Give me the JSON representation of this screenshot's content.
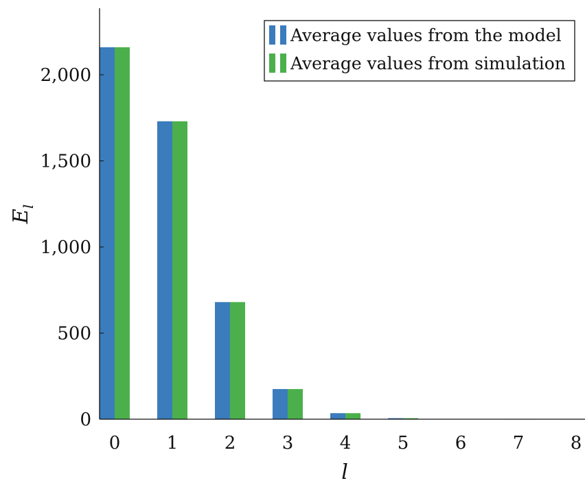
{
  "chart_data": {
    "type": "bar",
    "title": "",
    "xlabel": "l",
    "ylabel_main": "E",
    "ylabel_sub": "l",
    "categories": [
      "0",
      "1",
      "2",
      "3",
      "4",
      "5",
      "6",
      "7",
      "8"
    ],
    "series": [
      {
        "name": "Average values from the model",
        "color": "#3a7cbc",
        "values": [
          2160,
          1730,
          680,
          175,
          35,
          6,
          2,
          1,
          1
        ]
      },
      {
        "name": "Average values from simulation",
        "color": "#4bb04b",
        "values": [
          2160,
          1730,
          680,
          175,
          35,
          6,
          2,
          1,
          1
        ]
      }
    ],
    "ylim": [
      0,
      2400
    ],
    "yticks": [
      0,
      500,
      1000,
      1500,
      2000
    ],
    "ytick_labels": [
      "0",
      "500",
      "1,000",
      "1,500",
      "2,000"
    ],
    "grid": false,
    "legend_position": "top-right"
  }
}
